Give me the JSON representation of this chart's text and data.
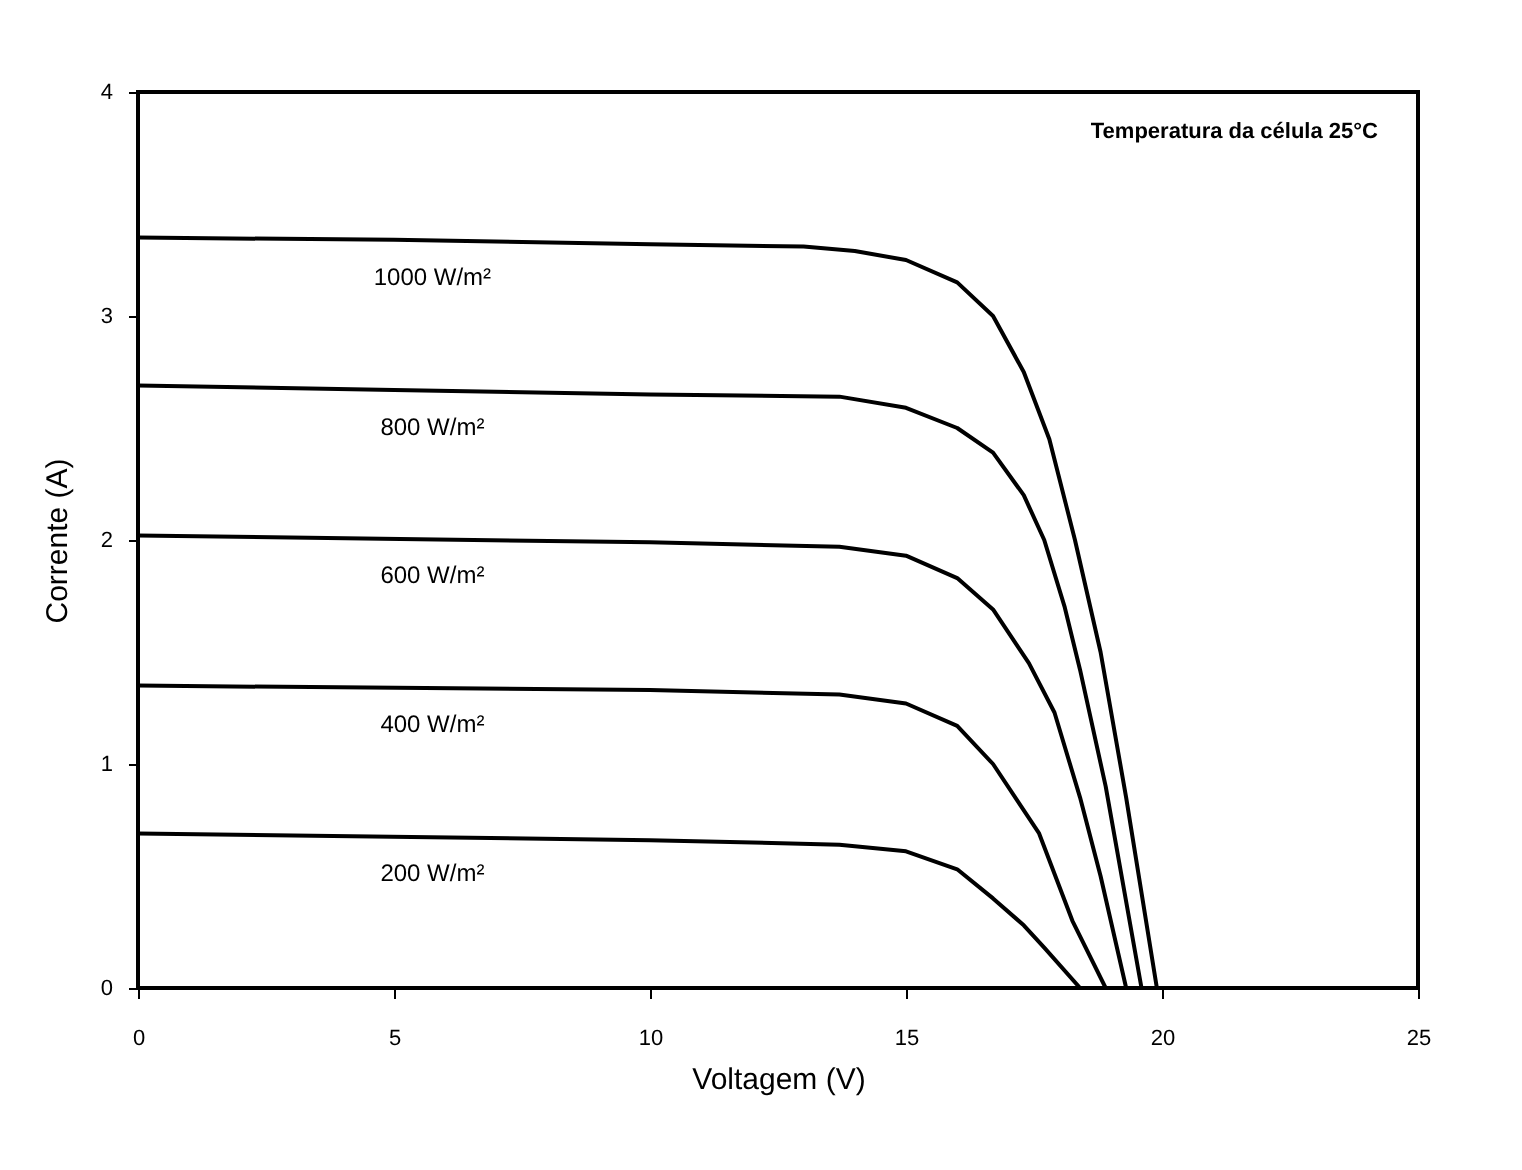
{
  "chart_data": {
    "type": "line",
    "xlabel": "Voltagem (V)",
    "ylabel": "Corrente (A)",
    "xlim": [
      0,
      25
    ],
    "ylim": [
      0,
      4
    ],
    "xticks": [
      0,
      5,
      10,
      15,
      20,
      25
    ],
    "yticks": [
      0,
      1,
      2,
      3,
      4
    ],
    "grid": false,
    "legend": false,
    "line_style": "solid",
    "marker": "none",
    "annotations": [
      "Temperatura da célula 25°C"
    ],
    "series": [
      {
        "name": "1000 W/m²",
        "color": "#000000",
        "x": [
          0,
          5,
          10,
          13,
          14,
          15,
          16,
          16.7,
          17.3,
          17.8,
          18.3,
          18.8,
          19.3,
          19.9
        ],
        "values": [
          3.35,
          3.34,
          3.32,
          3.31,
          3.29,
          3.25,
          3.15,
          3.0,
          2.75,
          2.45,
          2.0,
          1.5,
          0.85,
          0
        ]
      },
      {
        "name": "800 W/m²",
        "color": "#000000",
        "x": [
          0,
          5,
          10,
          13.7,
          15,
          16,
          16.7,
          17.3,
          17.7,
          18.1,
          18.4,
          18.9,
          19.6
        ],
        "values": [
          2.69,
          2.67,
          2.65,
          2.64,
          2.59,
          2.5,
          2.39,
          2.2,
          2.0,
          1.7,
          1.42,
          0.9,
          0
        ]
      },
      {
        "name": "600 W/m²",
        "color": "#000000",
        "x": [
          0,
          10,
          13.7,
          15,
          16,
          16.7,
          17.4,
          17.9,
          18.4,
          18.8,
          19.3
        ],
        "values": [
          2.02,
          1.99,
          1.97,
          1.93,
          1.83,
          1.69,
          1.45,
          1.23,
          0.85,
          0.5,
          0
        ]
      },
      {
        "name": "400 W/m²",
        "color": "#000000",
        "x": [
          0,
          10,
          13.7,
          15,
          16,
          16.7,
          17.6,
          18.25,
          18.9
        ],
        "values": [
          1.35,
          1.33,
          1.31,
          1.27,
          1.17,
          1.0,
          0.69,
          0.3,
          0
        ]
      },
      {
        "name": "200 W/m²",
        "color": "#000000",
        "x": [
          0,
          10,
          13.7,
          15,
          16,
          16.7,
          17.3,
          17.7,
          18.4
        ],
        "values": [
          0.69,
          0.66,
          0.64,
          0.61,
          0.53,
          0.4,
          0.28,
          0.18,
          0
        ]
      }
    ]
  }
}
